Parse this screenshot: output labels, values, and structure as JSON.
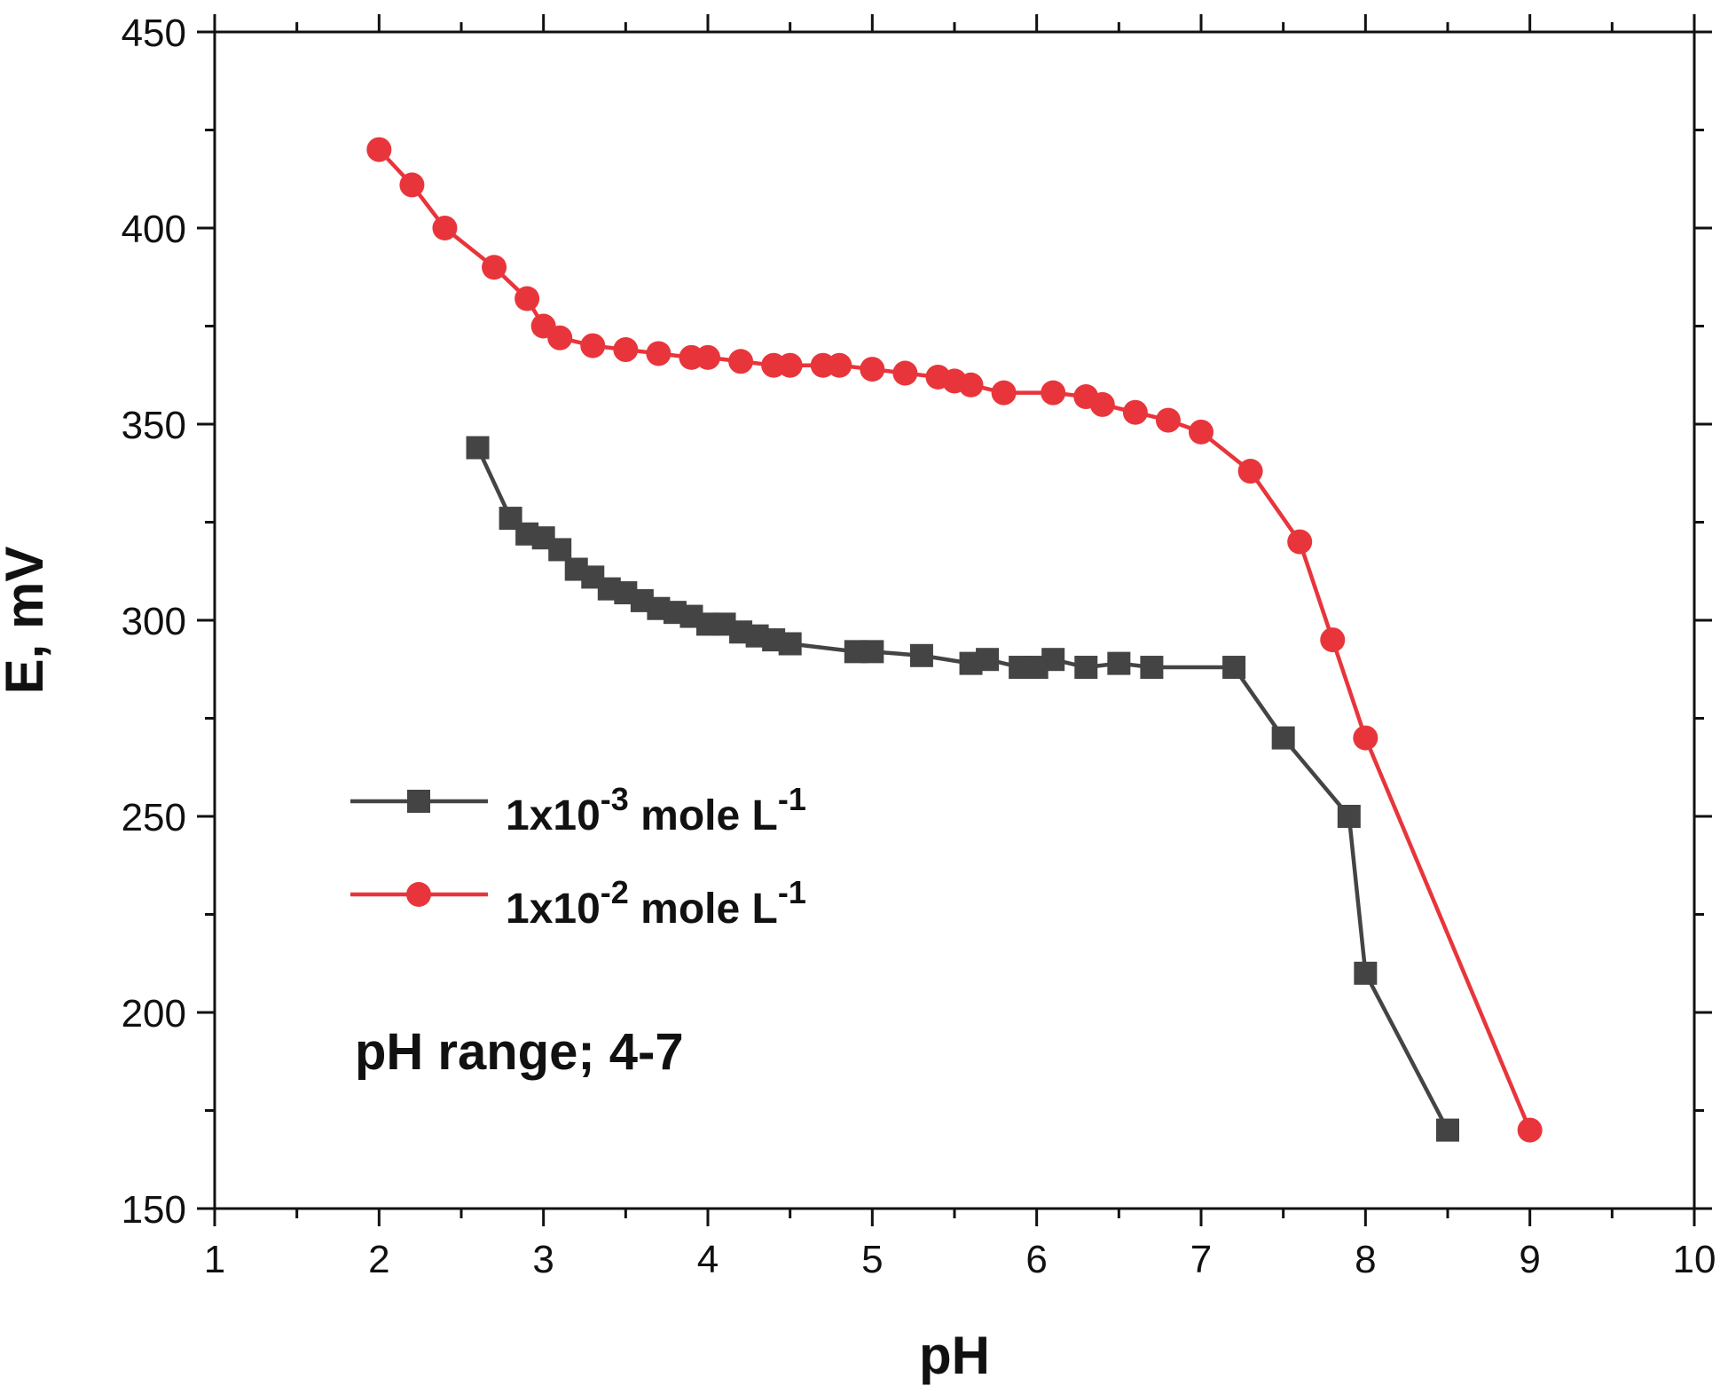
{
  "chart_data": {
    "type": "line",
    "title": "",
    "xlabel": "pH",
    "ylabel": "E, mV",
    "xlim": [
      1,
      10
    ],
    "ylim": [
      150,
      450
    ],
    "x_ticks": [
      1,
      2,
      3,
      4,
      5,
      6,
      7,
      8,
      9,
      10
    ],
    "y_ticks": [
      150,
      200,
      250,
      300,
      350,
      400,
      450
    ],
    "grid": false,
    "legend_position": "middle-left",
    "annotation": "pH range; 4-7",
    "series": [
      {
        "name": "1x10-3 mole L-1",
        "legend": {
          "base": "1x10",
          "exp": "-3",
          "mid": " mole L",
          "exp2": "-1"
        },
        "color": "#444444",
        "marker": "square",
        "x": [
          2.6,
          2.8,
          2.9,
          3.0,
          3.1,
          3.2,
          3.3,
          3.4,
          3.5,
          3.6,
          3.7,
          3.8,
          3.9,
          4.0,
          4.1,
          4.2,
          4.3,
          4.4,
          4.5,
          4.9,
          5.0,
          5.3,
          5.6,
          5.7,
          5.9,
          6.0,
          6.1,
          6.3,
          6.5,
          6.7,
          7.2,
          7.5,
          7.9,
          8.0,
          8.5
        ],
        "y": [
          344,
          326,
          322,
          321,
          318,
          313,
          311,
          308,
          307,
          305,
          303,
          302,
          301,
          299,
          299,
          297,
          296,
          295,
          294,
          292,
          292,
          291,
          289,
          290,
          288,
          288,
          290,
          288,
          289,
          288,
          288,
          270,
          250,
          210,
          170
        ]
      },
      {
        "name": "1x10-2 mole L-1",
        "legend": {
          "base": "1x10",
          "exp": "-2",
          "mid": " mole L",
          "exp2": "-1"
        },
        "color": "#e8353b",
        "marker": "circle",
        "x": [
          2.0,
          2.2,
          2.4,
          2.7,
          2.9,
          3.0,
          3.1,
          3.3,
          3.5,
          3.7,
          3.9,
          4.0,
          4.2,
          4.4,
          4.5,
          4.7,
          4.8,
          5.0,
          5.2,
          5.4,
          5.5,
          5.6,
          5.8,
          6.1,
          6.3,
          6.4,
          6.6,
          6.8,
          7.0,
          7.3,
          7.6,
          7.8,
          8.0,
          9.0
        ],
        "y": [
          420,
          411,
          400,
          390,
          382,
          375,
          372,
          370,
          369,
          368,
          367,
          367,
          366,
          365,
          365,
          365,
          365,
          364,
          363,
          362,
          361,
          360,
          358,
          358,
          357,
          355,
          353,
          351,
          348,
          338,
          320,
          295,
          270,
          170
        ]
      }
    ]
  }
}
